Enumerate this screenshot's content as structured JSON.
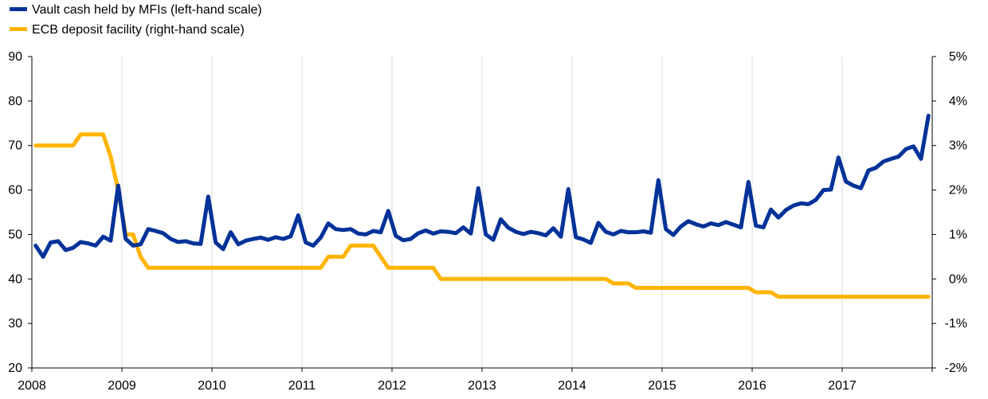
{
  "chart_data": {
    "type": "line",
    "title": "",
    "xlabel": "",
    "ylabel_left": "",
    "ylabel_right": "",
    "legend_position": "top-left",
    "grid": true,
    "x_start": "2008-01",
    "x_end": "2017-12",
    "x_ticks": [
      "2008",
      "2009",
      "2010",
      "2011",
      "2012",
      "2013",
      "2014",
      "2015",
      "2016",
      "2017"
    ],
    "y_left": {
      "min": 20,
      "max": 90,
      "ticks": [
        "20",
        "30",
        "40",
        "50",
        "60",
        "70",
        "80",
        "90"
      ]
    },
    "y_right": {
      "min": -2,
      "max": 5,
      "ticks": [
        "-2%",
        "-1%",
        "0%",
        "1%",
        "2%",
        "3%",
        "4%",
        "5%"
      ]
    },
    "series": [
      {
        "name": "Vault cash held by MFIs (left-hand scale)",
        "axis": "left",
        "color": "#003299",
        "values": [
          47.5,
          45.0,
          48.2,
          48.5,
          46.5,
          47.0,
          48.3,
          48.0,
          47.5,
          49.5,
          48.6,
          61.0,
          49.0,
          47.5,
          47.8,
          51.2,
          50.8,
          50.3,
          49.0,
          48.3,
          48.5,
          48.0,
          47.9,
          58.5,
          48.2,
          46.7,
          50.5,
          47.8,
          48.6,
          49.0,
          49.3,
          48.8,
          49.4,
          49.0,
          49.6,
          54.3,
          48.2,
          47.5,
          49.3,
          52.5,
          51.2,
          51.0,
          51.2,
          50.2,
          50.0,
          50.8,
          50.5,
          55.3,
          49.7,
          48.7,
          49.0,
          50.3,
          50.9,
          50.2,
          50.7,
          50.6,
          50.3,
          51.6,
          50.2,
          60.4,
          50.0,
          48.8,
          53.4,
          51.5,
          50.6,
          50.1,
          50.6,
          50.3,
          49.8,
          51.4,
          49.5,
          60.2,
          49.4,
          48.9,
          48.1,
          52.6,
          50.6,
          50.0,
          50.8,
          50.5,
          50.5,
          50.7,
          50.4,
          62.2,
          51.2,
          49.9,
          51.8,
          53.0,
          52.3,
          51.8,
          52.5,
          52.1,
          52.8,
          52.2,
          51.6,
          61.8,
          52.0,
          51.6,
          55.6,
          53.8,
          55.5,
          56.5,
          57.0,
          56.8,
          57.8,
          60.0,
          60.1,
          67.3,
          61.9,
          61.0,
          60.4,
          64.4,
          65.0,
          66.4,
          67.0,
          67.5,
          69.2,
          69.8,
          67.0,
          76.7
        ]
      },
      {
        "name": "ECB deposit facility (right-hand scale)",
        "axis": "right",
        "color": "#ffb400",
        "values": [
          3.0,
          3.0,
          3.0,
          3.0,
          3.0,
          3.0,
          3.25,
          3.25,
          3.25,
          3.25,
          2.75,
          2.0,
          1.0,
          1.0,
          0.5,
          0.25,
          0.25,
          0.25,
          0.25,
          0.25,
          0.25,
          0.25,
          0.25,
          0.25,
          0.25,
          0.25,
          0.25,
          0.25,
          0.25,
          0.25,
          0.25,
          0.25,
          0.25,
          0.25,
          0.25,
          0.25,
          0.25,
          0.25,
          0.25,
          0.5,
          0.5,
          0.5,
          0.75,
          0.75,
          0.75,
          0.75,
          0.5,
          0.25,
          0.25,
          0.25,
          0.25,
          0.25,
          0.25,
          0.25,
          0.0,
          0.0,
          0.0,
          0.0,
          0.0,
          0.0,
          0.0,
          0.0,
          0.0,
          0.0,
          0.0,
          0.0,
          0.0,
          0.0,
          0.0,
          0.0,
          0.0,
          0.0,
          0.0,
          0.0,
          0.0,
          0.0,
          0.0,
          -0.1,
          -0.1,
          -0.1,
          -0.2,
          -0.2,
          -0.2,
          -0.2,
          -0.2,
          -0.2,
          -0.2,
          -0.2,
          -0.2,
          -0.2,
          -0.2,
          -0.2,
          -0.2,
          -0.2,
          -0.2,
          -0.2,
          -0.3,
          -0.3,
          -0.3,
          -0.4,
          -0.4,
          -0.4,
          -0.4,
          -0.4,
          -0.4,
          -0.4,
          -0.4,
          -0.4,
          -0.4,
          -0.4,
          -0.4,
          -0.4,
          -0.4,
          -0.4,
          -0.4,
          -0.4,
          -0.4,
          -0.4,
          -0.4,
          -0.4
        ]
      }
    ]
  }
}
